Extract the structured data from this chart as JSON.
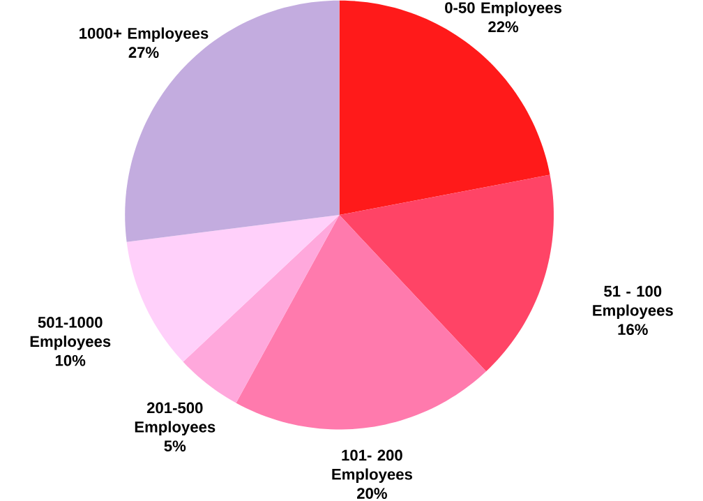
{
  "chart_data": {
    "type": "pie",
    "categories": [
      "0-50 Employees",
      "51 - 100 Employees",
      "101- 200 Employees",
      "201-500 Employees",
      "501-1000 Employees",
      "1000+ Employees"
    ],
    "values": [
      22,
      16,
      20,
      5,
      10,
      27
    ],
    "value_labels": [
      "22%",
      "16%",
      "20%",
      "5%",
      "10%",
      "27%"
    ],
    "colors": [
      "#ff1a1a",
      "#ff4466",
      "#ff7aad",
      "#ffa8dc",
      "#ffd0fa",
      "#c3acdf"
    ]
  }
}
